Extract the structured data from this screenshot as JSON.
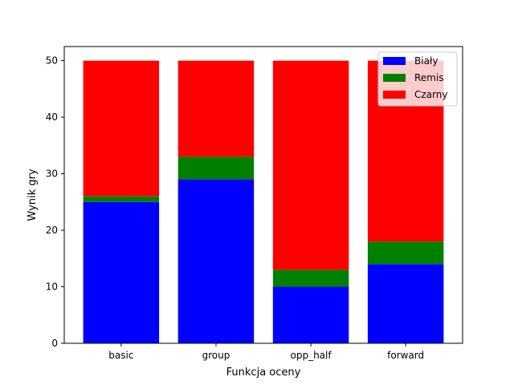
{
  "chart_data": {
    "type": "bar",
    "stacked": true,
    "title": "",
    "xlabel": "Funkcja oceny",
    "ylabel": "Wynik gry",
    "categories": [
      "basic",
      "group",
      "opp_half",
      "forward"
    ],
    "ylim": [
      0,
      52.5
    ],
    "yticks": [
      0,
      10,
      20,
      30,
      40,
      50
    ],
    "grid": false,
    "legend_position": "top-right",
    "series": [
      {
        "name": "Biały",
        "color": "#0000ff",
        "values": [
          25,
          29,
          10,
          14
        ]
      },
      {
        "name": "Remis",
        "color": "#008000",
        "values": [
          1,
          4,
          3,
          4
        ]
      },
      {
        "name": "Czarny",
        "color": "#ff0000",
        "values": [
          24,
          17,
          37,
          32
        ]
      }
    ]
  }
}
